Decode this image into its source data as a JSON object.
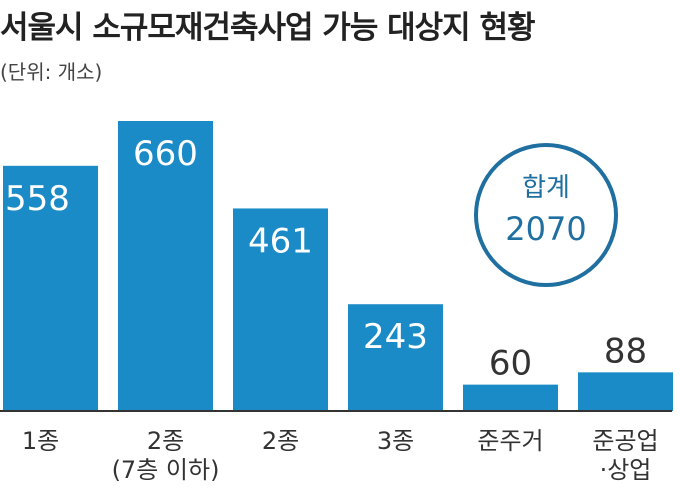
{
  "chart_data": {
    "type": "bar",
    "title": "서울시 소규모재건축사업 가능 대상지 현황",
    "unit_note": "(단위: 개소)",
    "categories": [
      [
        "1종"
      ],
      [
        "2종",
        "(7층 이하)"
      ],
      [
        "2종"
      ],
      [
        "3종"
      ],
      [
        "준주거"
      ],
      [
        "준공업",
        "·상업"
      ]
    ],
    "values": [
      558,
      660,
      461,
      243,
      60,
      88
    ],
    "total": {
      "label": "합계",
      "value": "2070"
    },
    "colors": {
      "bar": "#1a8bc6",
      "circle": "#1f6fa0"
    },
    "ylim": [
      0,
      660
    ]
  }
}
